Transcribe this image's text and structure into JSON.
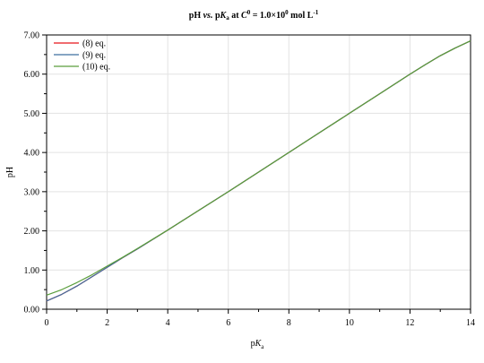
{
  "chart_data": {
    "type": "line",
    "title": {
      "t1": "pH ",
      "t2": "vs.",
      "t3": " p",
      "t4": "K",
      "t5": "a",
      "t6": " at ",
      "t7": "C",
      "t8": "0",
      "t9": " = 1.0×10",
      "t10": "0",
      "t11": " mol L",
      "t12": "-1"
    },
    "xlabel": {
      "main": "p",
      "italic": "K",
      "sub": "a"
    },
    "ylabel": "pH",
    "xlim": [
      0,
      14
    ],
    "ylim": [
      0,
      7
    ],
    "xticks": [
      0,
      2,
      4,
      6,
      8,
      10,
      12,
      14
    ],
    "xtick_labels": [
      "0",
      "2",
      "4",
      "6",
      "8",
      "10",
      "12",
      "14"
    ],
    "yticks": [
      0,
      1,
      2,
      3,
      4,
      5,
      6,
      7
    ],
    "ytick_labels": [
      "0.00",
      "1.00",
      "2.00",
      "3.00",
      "4.00",
      "5.00",
      "6.00",
      "7.00"
    ],
    "grid": true,
    "legend_position": "top-left",
    "series": [
      {
        "name": "(8) eq.",
        "color": "#e8151b",
        "x": [
          0,
          0.5,
          1,
          1.5,
          2,
          2.5,
          3,
          4,
          5,
          6,
          7,
          8,
          9,
          10,
          11,
          12,
          12.5,
          13,
          13.5,
          14
        ],
        "y": [
          0.21,
          0.38,
          0.59,
          0.83,
          1.07,
          1.31,
          1.54,
          2.02,
          2.51,
          3.0,
          3.5,
          4.0,
          4.5,
          5.0,
          5.5,
          6.0,
          6.24,
          6.47,
          6.67,
          6.85
        ]
      },
      {
        "name": "(9) eq.",
        "color": "#3f6f9f",
        "x": [
          0,
          0.5,
          1,
          1.5,
          2,
          2.5,
          3,
          4,
          5,
          6,
          7,
          8,
          9,
          10,
          11,
          12,
          12.5,
          13,
          13.5,
          14
        ],
        "y": [
          0.21,
          0.38,
          0.59,
          0.83,
          1.07,
          1.31,
          1.54,
          2.02,
          2.51,
          3.0,
          3.5,
          4.0,
          4.5,
          5.0,
          5.5,
          6.0,
          6.24,
          6.47,
          6.67,
          6.85
        ]
      },
      {
        "name": "(10) eq.",
        "color": "#5a9e3c",
        "x": [
          0,
          0.5,
          1,
          1.5,
          2,
          2.5,
          3,
          4,
          5,
          6,
          7,
          8,
          9,
          10,
          11,
          12,
          12.5,
          13,
          13.5,
          14
        ],
        "y": [
          0.36,
          0.5,
          0.68,
          0.88,
          1.1,
          1.32,
          1.55,
          2.02,
          2.51,
          3.0,
          3.5,
          4.0,
          4.5,
          5.0,
          5.5,
          6.0,
          6.24,
          6.47,
          6.67,
          6.85
        ]
      }
    ]
  }
}
